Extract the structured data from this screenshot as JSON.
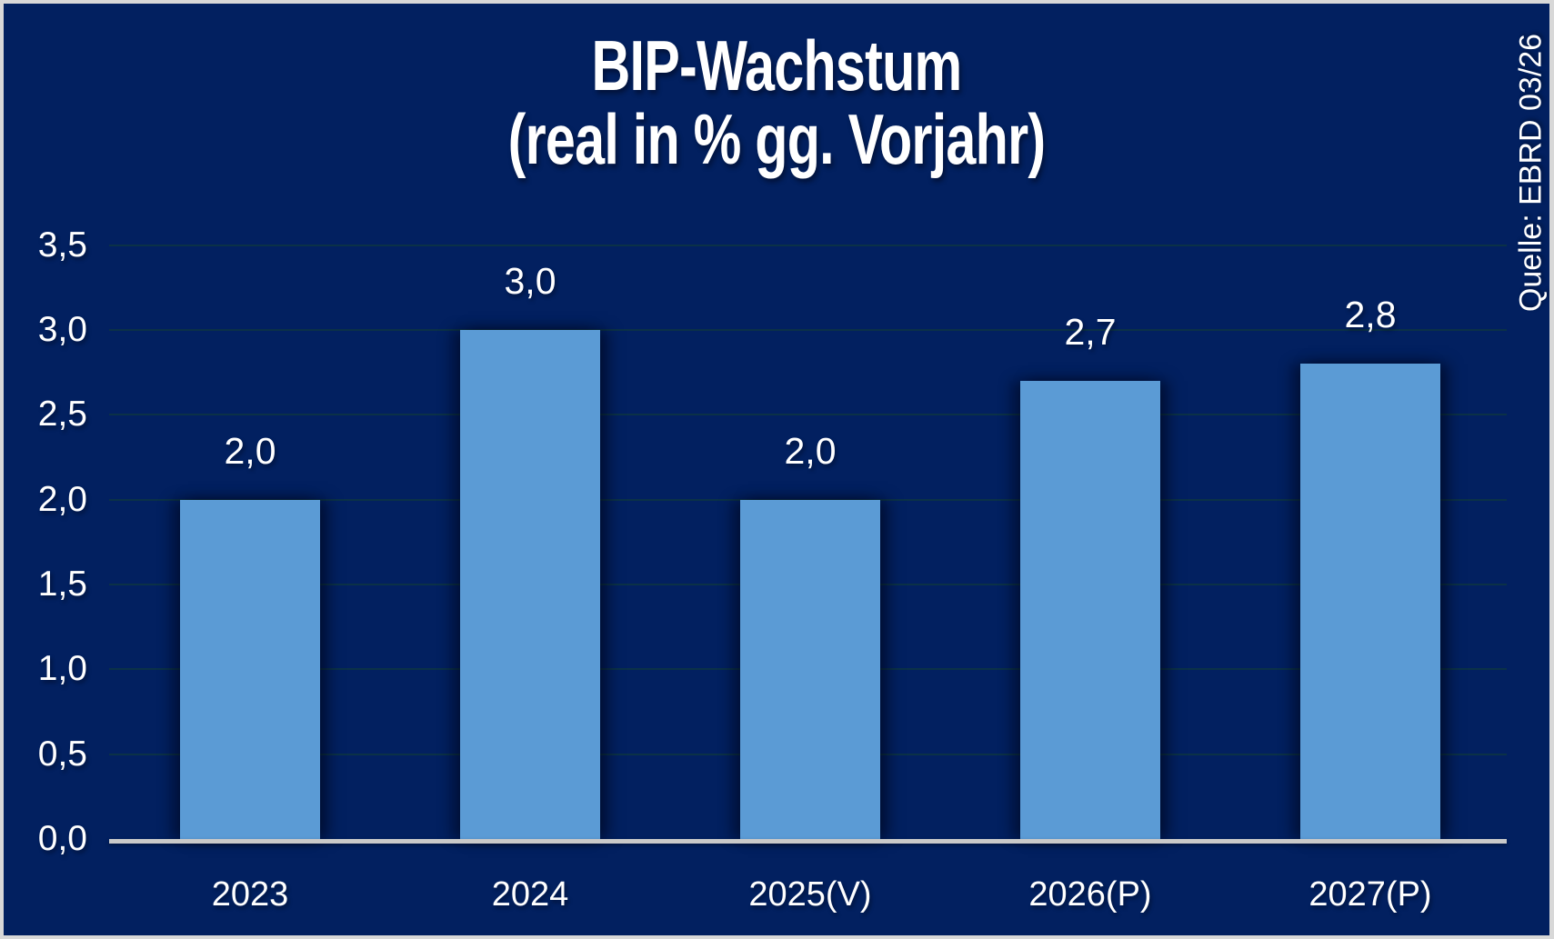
{
  "chart_data": {
    "type": "bar",
    "title": "BIP-Wachstum",
    "subtitle": "(real in % gg. Vorjahr)",
    "source_note": "Quelle: EBRD 03/26",
    "categories": [
      "2023",
      "2024",
      "2025(V)",
      "2026(P)",
      "2027(P)"
    ],
    "values": [
      2.0,
      3.0,
      2.0,
      2.7,
      2.8
    ],
    "value_labels": [
      "2,0",
      "3,0",
      "2,0",
      "2,7",
      "2,8"
    ],
    "y_ticks": [
      {
        "value": 3.5,
        "label": "3,5"
      },
      {
        "value": 3.0,
        "label": "3,0"
      },
      {
        "value": 2.5,
        "label": "2,5"
      },
      {
        "value": 2.0,
        "label": "2,0"
      },
      {
        "value": 1.5,
        "label": "1,5"
      },
      {
        "value": 1.0,
        "label": "1,0"
      },
      {
        "value": 0.5,
        "label": "0,5"
      },
      {
        "value": 0.0,
        "label": "0,0"
      }
    ],
    "ylim": [
      0,
      3.5
    ],
    "grid": true,
    "legend": "none",
    "colors": {
      "background": "#022060",
      "frame": "#d8d8d8",
      "bar": "#5b9bd5",
      "text": "#ffffff",
      "gridline": "#0b3147",
      "axis_line": "#c9c9c9"
    }
  }
}
